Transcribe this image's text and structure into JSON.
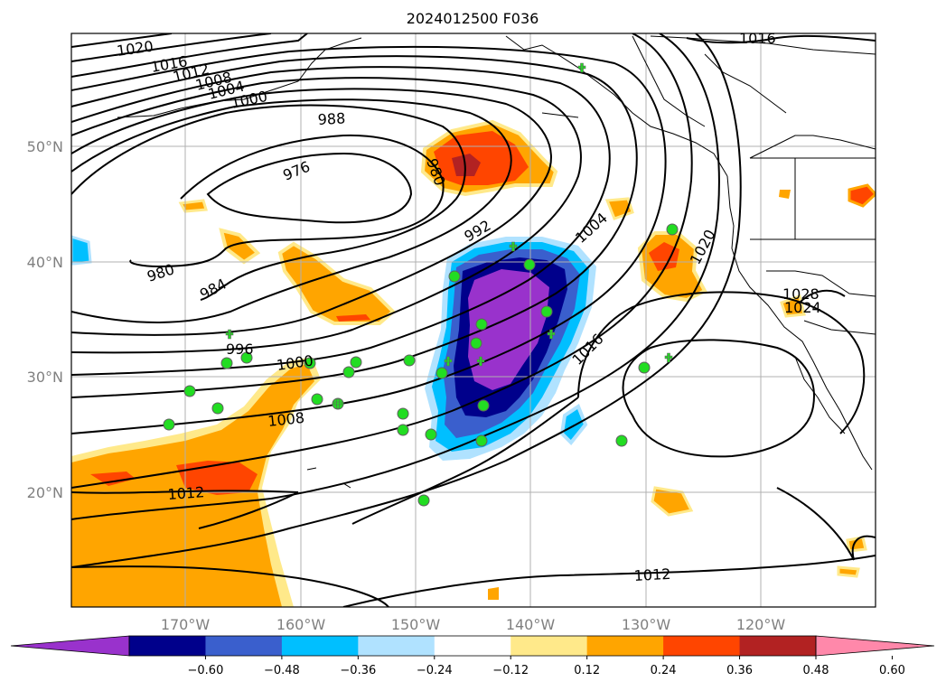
{
  "title": "2024012500 F036",
  "lat_labels": [
    "50°N",
    "40°N",
    "30°N",
    "20°N"
  ],
  "lon_labels": [
    "170°W",
    "160°W",
    "150°W",
    "140°W",
    "130°W",
    "120°W"
  ],
  "isobar_labels": {
    "l1020_nw": "1020",
    "l1016_nw": "1016",
    "l1012_nw": "1012",
    "l1008_nw": "1008",
    "l1004_nw": "1004",
    "l1000_nw": "1000",
    "l988": "988",
    "l976": "976",
    "l980_n": "980",
    "l980_w": "980",
    "l984": "984",
    "l992": "992",
    "l996": "996",
    "l1000_c": "1000",
    "l1008_c": "1008",
    "l1012_sw": "1012",
    "l1004_ne": "1004",
    "l1016_c": "1016",
    "l1020_e": "1020",
    "l1016_ne": "1016",
    "l1028": "1028",
    "l1024": "1024",
    "l1012_s": "1012"
  },
  "colorbar": {
    "ticks": [
      "−0.60",
      "−0.48",
      "−0.36",
      "−0.24",
      "−0.12",
      "0.12",
      "0.24",
      "0.36",
      "0.48",
      "0.60"
    ],
    "colors": [
      "#9932cc",
      "#00008b",
      "#3a5fcd",
      "#00bfff",
      "#b0e2ff",
      "#ffffff",
      "#ffe98a",
      "#ffa500",
      "#ff4500",
      "#b22222",
      "#ff88aa"
    ]
  },
  "marker_colors": {
    "dot": "#22dd22",
    "plus": "#22dd22"
  }
}
